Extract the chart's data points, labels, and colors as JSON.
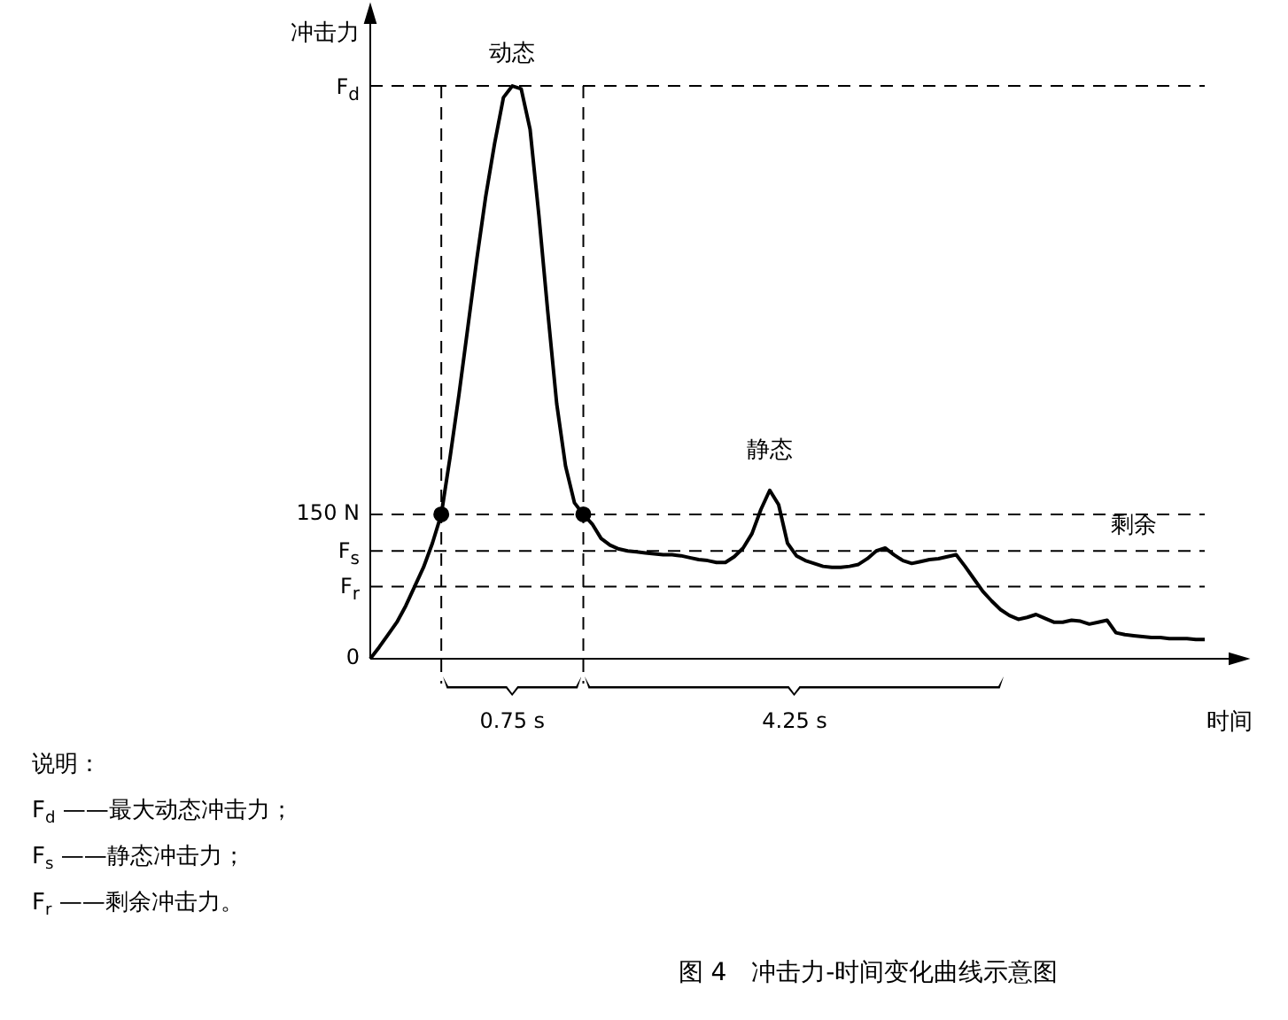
{
  "chart_data": {
    "type": "line",
    "title": "图 4　冲击力-时间变化曲线示意图",
    "ylabel": "冲击力",
    "xlabel": "时间",
    "categories": [
      null,
      null,
      null,
      null,
      null,
      null,
      null,
      null,
      null,
      null,
      null,
      null,
      null,
      null,
      null,
      null,
      null,
      null,
      null,
      null,
      null,
      null,
      null,
      null,
      null,
      null,
      null,
      null,
      null,
      null,
      null,
      null,
      null,
      null,
      null,
      null,
      null,
      null,
      null,
      null,
      null,
      null,
      null,
      null,
      null,
      null,
      null,
      null,
      null,
      null,
      null,
      null,
      null,
      null,
      null,
      null,
      null,
      null,
      null,
      null,
      null,
      null,
      null,
      null,
      null,
      null,
      null,
      null,
      null,
      null,
      null,
      null,
      null,
      null,
      null,
      null,
      null,
      null,
      null,
      null,
      null,
      null,
      null,
      null,
      null,
      null,
      null,
      null,
      null,
      null,
      null,
      null,
      null,
      null,
      null
    ],
    "ylim": [
      0,
      660
    ],
    "grid": false,
    "yticks": [
      {
        "value": 0,
        "label": "0"
      },
      {
        "value": 75,
        "label": "F$_{r}$"
      },
      {
        "value": 112,
        "label": "F$_{s}$"
      },
      {
        "value": 150,
        "label": "150 N"
      },
      {
        "value": 595,
        "label": "F$_{d}$"
      }
    ],
    "legend": false,
    "line_style": "solid",
    "marker": "none",
    "series": [
      {
        "color": "#000000",
        "values": [
          0,
          12,
          25,
          38,
          55,
          75,
          95,
          120,
          150,
          210,
          275,
          345,
          415,
          480,
          535,
          583,
          595,
          592,
          550,
          460,
          360,
          265,
          200,
          162,
          150,
          140,
          125,
          118,
          114,
          112,
          111,
          110,
          109,
          108,
          108,
          107,
          105,
          103,
          102,
          100,
          100,
          106,
          115,
          130,
          155,
          175,
          160,
          120,
          107,
          102,
          99,
          96,
          95,
          95,
          96,
          98,
          104,
          112,
          115,
          108,
          102,
          99,
          101,
          103,
          104,
          106,
          108,
          96,
          83,
          70,
          60,
          51,
          45,
          41,
          43,
          46,
          42,
          38,
          38,
          40,
          39,
          36,
          38,
          40,
          27,
          25,
          24,
          23,
          22,
          22,
          21,
          21,
          21,
          20,
          20
        ]
      },
      {
        "type": "scatter",
        "color": "#000000",
        "marker": "circle",
        "values": [
          null,
          null,
          null,
          null,
          null,
          null,
          null,
          null,
          150,
          null,
          null,
          null,
          null,
          null,
          null,
          null,
          null,
          null,
          null,
          null,
          null,
          null,
          null,
          null,
          150,
          null,
          null,
          null,
          null,
          null,
          null,
          null,
          null,
          null,
          null,
          null,
          null,
          null,
          null,
          null,
          null,
          null,
          null,
          null,
          null,
          null,
          null,
          null,
          null,
          null,
          null,
          null,
          null,
          null,
          null,
          null,
          null,
          null,
          null,
          null,
          null,
          null,
          null,
          null,
          null,
          null,
          null,
          null,
          null,
          null,
          null,
          null,
          null,
          null,
          null,
          null,
          null,
          null,
          null,
          null,
          null,
          null,
          null,
          null,
          null,
          null,
          null,
          null,
          null,
          null,
          null,
          null,
          null,
          null,
          null
        ]
      }
    ],
    "ref_lines": [
      {
        "axis": "y",
        "value": 595,
        "line_style": "dashed"
      },
      {
        "axis": "y",
        "value": 150,
        "line_style": "dashed"
      },
      {
        "axis": "y",
        "value": 112,
        "line_style": "dashed"
      },
      {
        "axis": "y",
        "value": 75,
        "line_style": "dashed"
      }
    ],
    "annotations": [
      "动态",
      "静态",
      "剩余",
      "0.75 s",
      "4.25 s",
      "说明：",
      "F$_{d}$ ——最大动态冲击力；",
      "F$_{s}$ ——静态冲击力；",
      "F$_{r}$ ——剩余冲击力。"
    ]
  }
}
